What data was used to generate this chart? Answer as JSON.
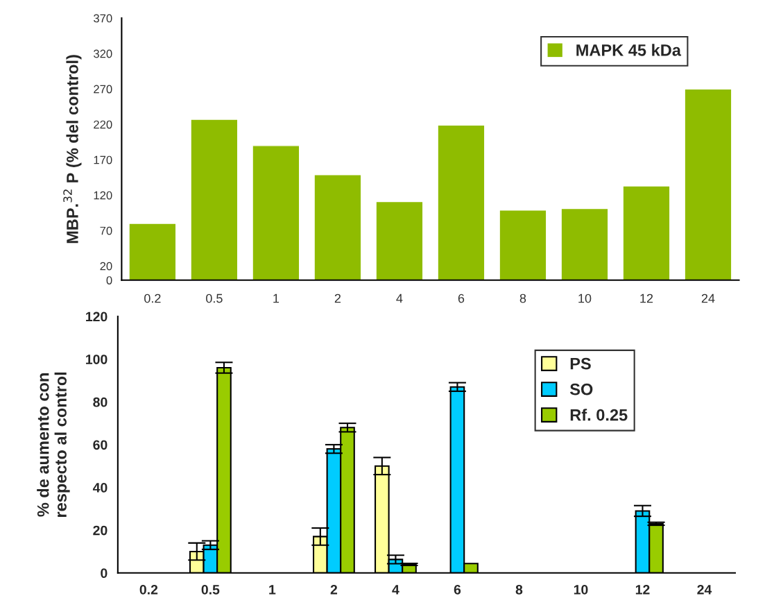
{
  "chart_data": [
    {
      "type": "bar",
      "ylabel": "MBP.$^{32}$ P (% del control)",
      "categories": [
        "0.2",
        "0.5",
        "1",
        "2",
        "4",
        "6",
        "8",
        "10",
        "12",
        "24"
      ],
      "series": [
        {
          "name": "MAPK 45 kDa",
          "color": "#8fbc00",
          "values": [
            80,
            227,
            190,
            149,
            111,
            219,
            99,
            101,
            133,
            270
          ]
        }
      ],
      "ylim": [
        0,
        370
      ],
      "yticks": [
        0,
        20,
        70,
        120,
        170,
        220,
        270,
        320,
        370
      ],
      "grid": false,
      "legend": "top right"
    },
    {
      "type": "bar",
      "ylabel": "% de aumento con\nrespecto al control",
      "categories": [
        "0.2",
        "0.5",
        "1",
        "2",
        "4",
        "6",
        "8",
        "10",
        "12",
        "24"
      ],
      "series": [
        {
          "name": "PS",
          "color": "#ffff99",
          "values": [
            null,
            10,
            null,
            17,
            50,
            null,
            null,
            null,
            null,
            null
          ],
          "errors": [
            null,
            4,
            null,
            4,
            4,
            null,
            null,
            null,
            null,
            null
          ]
        },
        {
          "name": "SO",
          "color": "#00ccff",
          "values": [
            null,
            13,
            null,
            58,
            6.3,
            87,
            null,
            null,
            29,
            null
          ],
          "errors": [
            null,
            2,
            null,
            2,
            2,
            2,
            null,
            null,
            2.5,
            null
          ]
        },
        {
          "name": "Rf. 0.25",
          "color": "#99cc00",
          "values": [
            null,
            96,
            null,
            68,
            4,
            4.4,
            null,
            null,
            23,
            null
          ],
          "errors": [
            null,
            2.5,
            null,
            2,
            0.5,
            null,
            null,
            null,
            0.7,
            null
          ]
        }
      ],
      "ylim": [
        0,
        120
      ],
      "yticks": [
        0,
        20,
        40,
        60,
        80,
        100,
        120
      ],
      "grid": false,
      "legend": "top right"
    }
  ]
}
